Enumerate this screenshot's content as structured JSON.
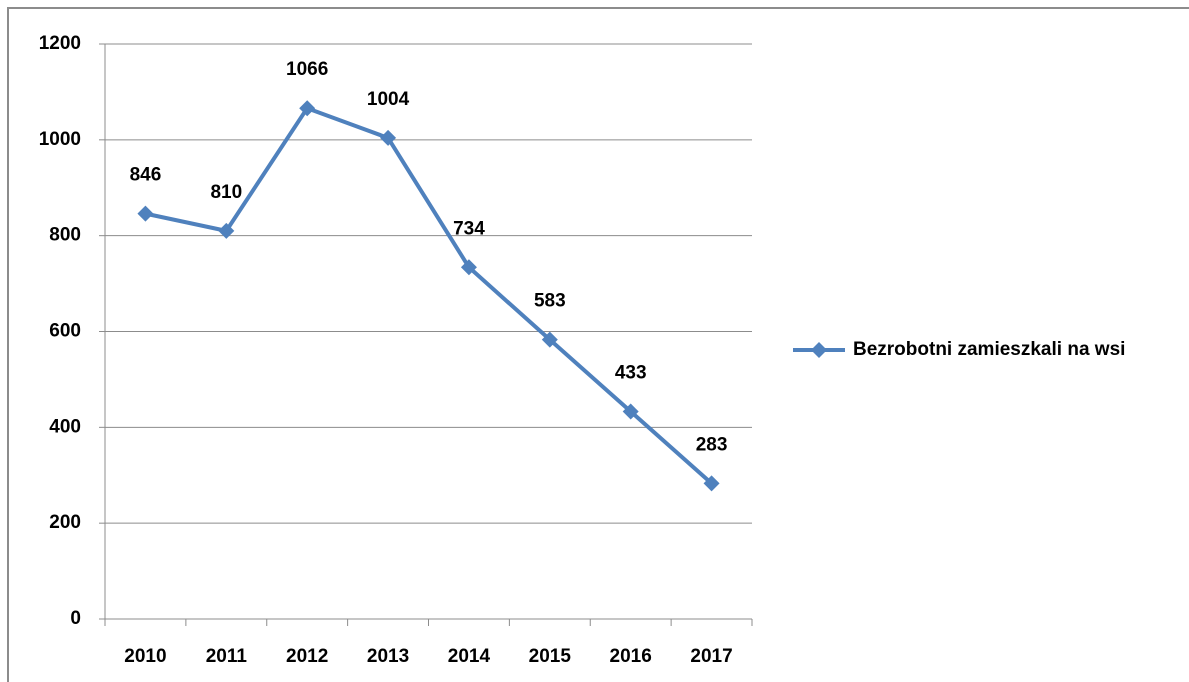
{
  "chart_data": {
    "type": "line",
    "categories": [
      "2010",
      "2011",
      "2012",
      "2013",
      "2014",
      "2015",
      "2016",
      "2017"
    ],
    "series": [
      {
        "name": "Bezrobotni zamieszkali na wsi",
        "color": "#4f81bd",
        "values": [
          846,
          810,
          1066,
          1004,
          734,
          583,
          433,
          283
        ]
      }
    ],
    "ylim": [
      0,
      1200
    ],
    "yticks": [
      0,
      200,
      400,
      600,
      800,
      1000,
      1200
    ],
    "grid": true,
    "legend": "right",
    "data_labels": true
  }
}
